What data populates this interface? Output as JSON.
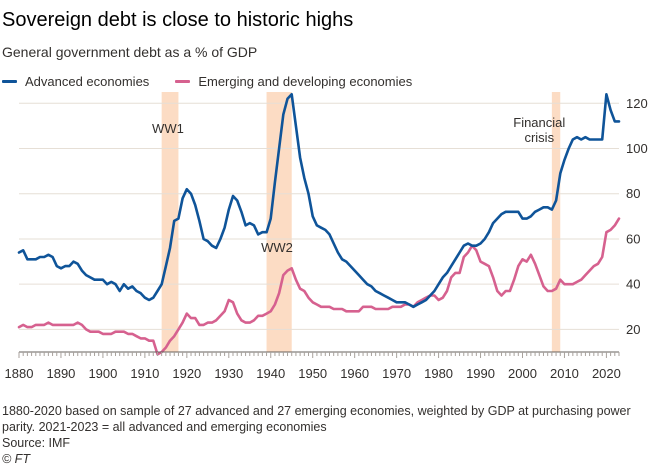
{
  "header": {
    "title": "Sovereign debt is close to historic highs",
    "subtitle": "General government debt as a % of GDP"
  },
  "colors": {
    "advanced": "#0f5499",
    "emerging": "#d6618f",
    "shade": "#fcdcc4",
    "grid": "#e6dfd6",
    "text": "#33302e"
  },
  "chart_data": {
    "type": "line",
    "xlim": [
      1880,
      2023
    ],
    "ylim": [
      10,
      125
    ],
    "x_ticks": [
      1880,
      1890,
      1900,
      1910,
      1920,
      1930,
      1940,
      1950,
      1960,
      1970,
      1980,
      1990,
      2000,
      2010,
      2020
    ],
    "y_ticks": [
      20,
      40,
      60,
      80,
      100,
      120
    ],
    "grid": true,
    "y_axis_side": "right",
    "legend_position": "top-left",
    "shaded_periods": [
      {
        "label": "WW1",
        "start": 1914,
        "end": 1918
      },
      {
        "label": "WW2",
        "start": 1939,
        "end": 1945
      },
      {
        "label": "Financial crisis",
        "start": 2007,
        "end": 2009
      }
    ],
    "series": [
      {
        "name": "Advanced economies",
        "color": "#0f5499",
        "points": [
          [
            1880,
            54
          ],
          [
            1881,
            55
          ],
          [
            1882,
            51
          ],
          [
            1883,
            51
          ],
          [
            1884,
            51
          ],
          [
            1885,
            52
          ],
          [
            1886,
            52
          ],
          [
            1887,
            53
          ],
          [
            1888,
            52
          ],
          [
            1889,
            48
          ],
          [
            1890,
            47
          ],
          [
            1891,
            48
          ],
          [
            1892,
            48
          ],
          [
            1893,
            50
          ],
          [
            1894,
            49
          ],
          [
            1895,
            46
          ],
          [
            1896,
            44
          ],
          [
            1897,
            43
          ],
          [
            1898,
            42
          ],
          [
            1899,
            42
          ],
          [
            1900,
            42
          ],
          [
            1901,
            40
          ],
          [
            1902,
            41
          ],
          [
            1903,
            40
          ],
          [
            1904,
            37
          ],
          [
            1905,
            40
          ],
          [
            1906,
            38
          ],
          [
            1907,
            39
          ],
          [
            1908,
            37
          ],
          [
            1909,
            36
          ],
          [
            1910,
            34
          ],
          [
            1911,
            33
          ],
          [
            1912,
            34
          ],
          [
            1913,
            37
          ],
          [
            1914,
            40
          ],
          [
            1915,
            48
          ],
          [
            1916,
            56
          ],
          [
            1917,
            68
          ],
          [
            1918,
            69
          ],
          [
            1919,
            78
          ],
          [
            1920,
            82
          ],
          [
            1921,
            80
          ],
          [
            1922,
            75
          ],
          [
            1923,
            68
          ],
          [
            1924,
            60
          ],
          [
            1925,
            59
          ],
          [
            1926,
            57
          ],
          [
            1927,
            56
          ],
          [
            1928,
            60
          ],
          [
            1929,
            65
          ],
          [
            1930,
            73
          ],
          [
            1931,
            79
          ],
          [
            1932,
            77
          ],
          [
            1933,
            72
          ],
          [
            1934,
            66
          ],
          [
            1935,
            67
          ],
          [
            1936,
            66
          ],
          [
            1937,
            62
          ],
          [
            1938,
            63
          ],
          [
            1939,
            63
          ],
          [
            1940,
            69
          ],
          [
            1941,
            85
          ],
          [
            1942,
            100
          ],
          [
            1943,
            115
          ],
          [
            1944,
            122
          ],
          [
            1945,
            124
          ],
          [
            1946,
            110
          ],
          [
            1947,
            96
          ],
          [
            1948,
            87
          ],
          [
            1949,
            80
          ],
          [
            1950,
            70
          ],
          [
            1951,
            66
          ],
          [
            1952,
            65
          ],
          [
            1953,
            64
          ],
          [
            1954,
            62
          ],
          [
            1955,
            58
          ],
          [
            1956,
            54
          ],
          [
            1957,
            51
          ],
          [
            1958,
            50
          ],
          [
            1959,
            48
          ],
          [
            1960,
            46
          ],
          [
            1961,
            44
          ],
          [
            1962,
            42
          ],
          [
            1963,
            40
          ],
          [
            1964,
            39
          ],
          [
            1965,
            37
          ],
          [
            1966,
            36
          ],
          [
            1967,
            35
          ],
          [
            1968,
            34
          ],
          [
            1969,
            33
          ],
          [
            1970,
            32
          ],
          [
            1971,
            32
          ],
          [
            1972,
            32
          ],
          [
            1973,
            31
          ],
          [
            1974,
            30
          ],
          [
            1975,
            31
          ],
          [
            1976,
            32
          ],
          [
            1977,
            33
          ],
          [
            1978,
            35
          ],
          [
            1979,
            37
          ],
          [
            1980,
            40
          ],
          [
            1981,
            43
          ],
          [
            1982,
            45
          ],
          [
            1983,
            48
          ],
          [
            1984,
            51
          ],
          [
            1985,
            54
          ],
          [
            1986,
            57
          ],
          [
            1987,
            58
          ],
          [
            1988,
            57
          ],
          [
            1989,
            57
          ],
          [
            1990,
            58
          ],
          [
            1991,
            60
          ],
          [
            1992,
            63
          ],
          [
            1993,
            67
          ],
          [
            1994,
            69
          ],
          [
            1995,
            71
          ],
          [
            1996,
            72
          ],
          [
            1997,
            72
          ],
          [
            1998,
            72
          ],
          [
            1999,
            72
          ],
          [
            2000,
            69
          ],
          [
            2001,
            69
          ],
          [
            2002,
            70
          ],
          [
            2003,
            72
          ],
          [
            2004,
            73
          ],
          [
            2005,
            74
          ],
          [
            2006,
            74
          ],
          [
            2007,
            73
          ],
          [
            2008,
            77
          ],
          [
            2009,
            89
          ],
          [
            2010,
            95
          ],
          [
            2011,
            100
          ],
          [
            2012,
            104
          ],
          [
            2013,
            105
          ],
          [
            2014,
            104
          ],
          [
            2015,
            105
          ],
          [
            2016,
            104
          ],
          [
            2017,
            104
          ],
          [
            2018,
            104
          ],
          [
            2019,
            104
          ],
          [
            2020,
            124
          ],
          [
            2021,
            117
          ],
          [
            2022,
            112
          ],
          [
            2023,
            112
          ]
        ]
      },
      {
        "name": "Emerging and developing economies",
        "color": "#d6618f",
        "points": [
          [
            1880,
            21
          ],
          [
            1881,
            22
          ],
          [
            1882,
            21
          ],
          [
            1883,
            21
          ],
          [
            1884,
            22
          ],
          [
            1885,
            22
          ],
          [
            1886,
            22
          ],
          [
            1887,
            23
          ],
          [
            1888,
            22
          ],
          [
            1889,
            22
          ],
          [
            1890,
            22
          ],
          [
            1891,
            22
          ],
          [
            1892,
            22
          ],
          [
            1893,
            22
          ],
          [
            1894,
            23
          ],
          [
            1895,
            22
          ],
          [
            1896,
            20
          ],
          [
            1897,
            19
          ],
          [
            1898,
            19
          ],
          [
            1899,
            19
          ],
          [
            1900,
            18
          ],
          [
            1901,
            18
          ],
          [
            1902,
            18
          ],
          [
            1903,
            19
          ],
          [
            1904,
            19
          ],
          [
            1905,
            19
          ],
          [
            1906,
            18
          ],
          [
            1907,
            18
          ],
          [
            1908,
            17
          ],
          [
            1909,
            16
          ],
          [
            1910,
            16
          ],
          [
            1911,
            15
          ],
          [
            1912,
            15
          ],
          [
            1913,
            9
          ],
          [
            1914,
            10
          ],
          [
            1915,
            12
          ],
          [
            1916,
            15
          ],
          [
            1917,
            17
          ],
          [
            1918,
            20
          ],
          [
            1919,
            23
          ],
          [
            1920,
            27
          ],
          [
            1921,
            25
          ],
          [
            1922,
            25
          ],
          [
            1923,
            22
          ],
          [
            1924,
            22
          ],
          [
            1925,
            23
          ],
          [
            1926,
            23
          ],
          [
            1927,
            24
          ],
          [
            1928,
            26
          ],
          [
            1929,
            28
          ],
          [
            1930,
            33
          ],
          [
            1931,
            32
          ],
          [
            1932,
            27
          ],
          [
            1933,
            24
          ],
          [
            1934,
            23
          ],
          [
            1935,
            23
          ],
          [
            1936,
            24
          ],
          [
            1937,
            26
          ],
          [
            1938,
            26
          ],
          [
            1939,
            27
          ],
          [
            1940,
            28
          ],
          [
            1941,
            31
          ],
          [
            1942,
            36
          ],
          [
            1943,
            44
          ],
          [
            1944,
            46
          ],
          [
            1945,
            47
          ],
          [
            1946,
            42
          ],
          [
            1947,
            38
          ],
          [
            1948,
            37
          ],
          [
            1949,
            34
          ],
          [
            1950,
            32
          ],
          [
            1951,
            31
          ],
          [
            1952,
            30
          ],
          [
            1953,
            30
          ],
          [
            1954,
            30
          ],
          [
            1955,
            29
          ],
          [
            1956,
            29
          ],
          [
            1957,
            29
          ],
          [
            1958,
            28
          ],
          [
            1959,
            28
          ],
          [
            1960,
            28
          ],
          [
            1961,
            28
          ],
          [
            1962,
            30
          ],
          [
            1963,
            30
          ],
          [
            1964,
            30
          ],
          [
            1965,
            29
          ],
          [
            1966,
            29
          ],
          [
            1967,
            29
          ],
          [
            1968,
            29
          ],
          [
            1969,
            30
          ],
          [
            1970,
            30
          ],
          [
            1971,
            30
          ],
          [
            1972,
            31
          ],
          [
            1973,
            31
          ],
          [
            1974,
            30
          ],
          [
            1975,
            32
          ],
          [
            1976,
            33
          ],
          [
            1977,
            34
          ],
          [
            1978,
            35
          ],
          [
            1979,
            35
          ],
          [
            1980,
            33
          ],
          [
            1981,
            34
          ],
          [
            1982,
            37
          ],
          [
            1983,
            43
          ],
          [
            1984,
            45
          ],
          [
            1985,
            45
          ],
          [
            1986,
            52
          ],
          [
            1987,
            54
          ],
          [
            1988,
            57
          ],
          [
            1989,
            55
          ],
          [
            1990,
            50
          ],
          [
            1991,
            49
          ],
          [
            1992,
            48
          ],
          [
            1993,
            43
          ],
          [
            1994,
            37
          ],
          [
            1995,
            35
          ],
          [
            1996,
            37
          ],
          [
            1997,
            37
          ],
          [
            1998,
            42
          ],
          [
            1999,
            48
          ],
          [
            2000,
            51
          ],
          [
            2001,
            50
          ],
          [
            2002,
            53
          ],
          [
            2003,
            49
          ],
          [
            2004,
            44
          ],
          [
            2005,
            39
          ],
          [
            2006,
            37
          ],
          [
            2007,
            37
          ],
          [
            2008,
            38
          ],
          [
            2009,
            42
          ],
          [
            2010,
            40
          ],
          [
            2011,
            40
          ],
          [
            2012,
            40
          ],
          [
            2013,
            41
          ],
          [
            2014,
            42
          ],
          [
            2015,
            44
          ],
          [
            2016,
            46
          ],
          [
            2017,
            48
          ],
          [
            2018,
            49
          ],
          [
            2019,
            52
          ],
          [
            2020,
            63
          ],
          [
            2021,
            64
          ],
          [
            2022,
            66
          ],
          [
            2023,
            69
          ]
        ]
      }
    ]
  },
  "footnote": "1880-2020 based on sample of 27 advanced and 27 emerging economies, weighted by GDP at purchasing power parity. 2021-2023 = all advanced and emerging economies",
  "source": "Source: IMF",
  "brand": "© FT"
}
